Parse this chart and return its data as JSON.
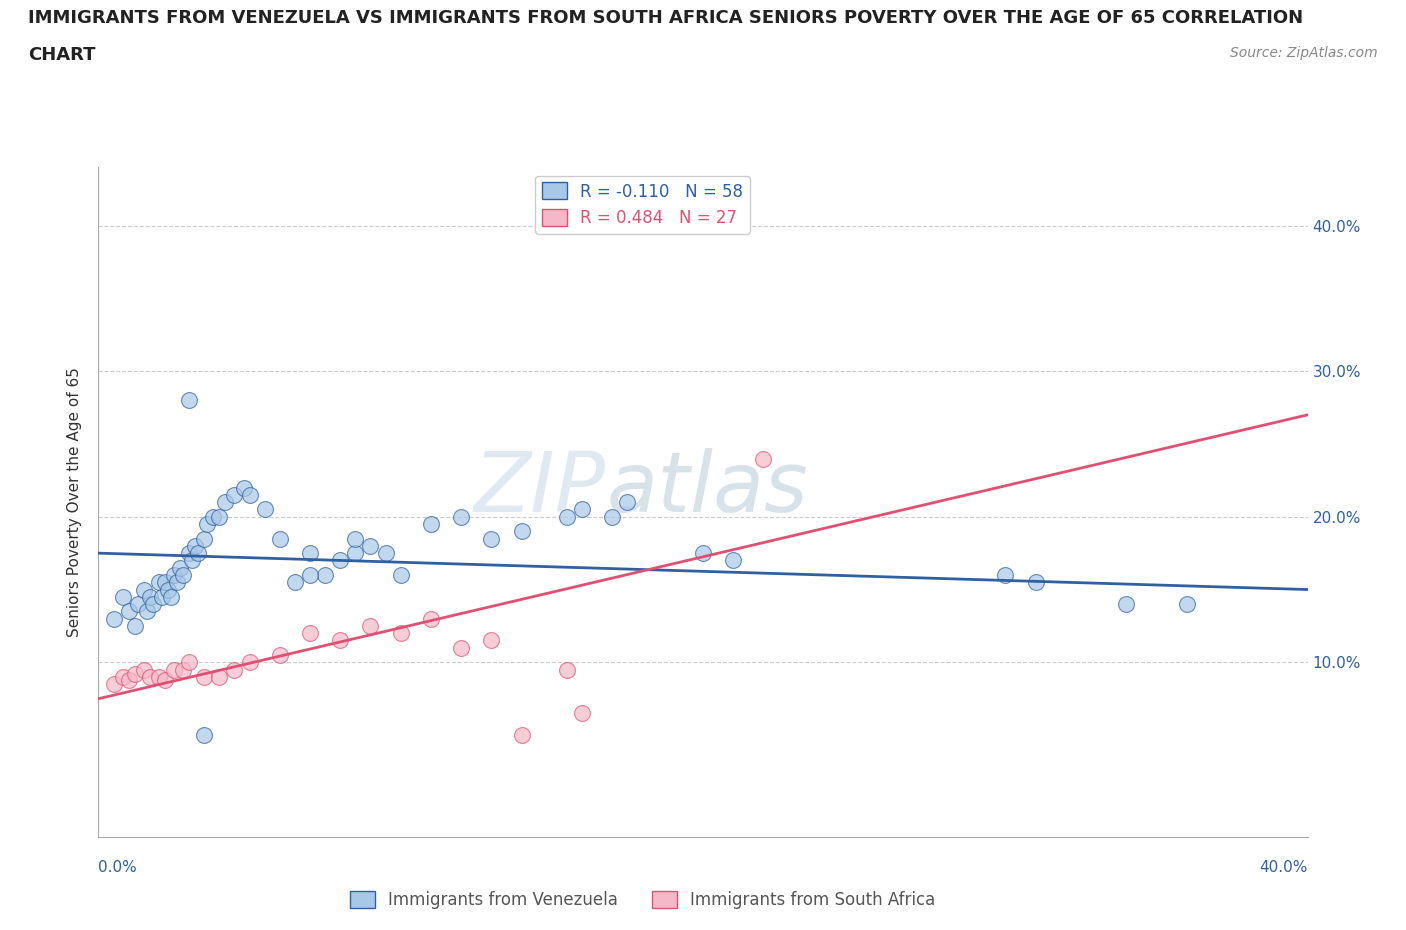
{
  "title_line1": "IMMIGRANTS FROM VENEZUELA VS IMMIGRANTS FROM SOUTH AFRICA SENIORS POVERTY OVER THE AGE OF 65 CORRELATION",
  "title_line2": "CHART",
  "source": "Source: ZipAtlas.com",
  "xlabel_bottom_left": "0.0%",
  "xlabel_bottom_right": "40.0%",
  "ylabel": "Seniors Poverty Over the Age of 65",
  "ytick_labels": [
    "10.0%",
    "20.0%",
    "30.0%",
    "40.0%"
  ],
  "ytick_values": [
    0.1,
    0.2,
    0.3,
    0.4
  ],
  "xlim": [
    0.0,
    0.4
  ],
  "ylim": [
    -0.02,
    0.44
  ],
  "watermark_zip": "ZIP",
  "watermark_atlas": "atlas",
  "legend_r1": "R = -0.110   N = 58",
  "legend_r2": "R = 0.484   N = 27",
  "color_venezuela": "#a8c8e8",
  "color_south_africa": "#f4b8c8",
  "line_color_venezuela": "#3060a0",
  "line_color_south_africa": "#e05070",
  "venezuela_x": [
    0.005,
    0.008,
    0.01,
    0.012,
    0.013,
    0.015,
    0.016,
    0.017,
    0.018,
    0.02,
    0.021,
    0.022,
    0.023,
    0.024,
    0.025,
    0.026,
    0.027,
    0.028,
    0.03,
    0.031,
    0.032,
    0.033,
    0.035,
    0.036,
    0.038,
    0.04,
    0.042,
    0.045,
    0.048,
    0.05,
    0.055,
    0.06,
    0.065,
    0.07,
    0.075,
    0.08,
    0.085,
    0.09,
    0.095,
    0.1,
    0.11,
    0.12,
    0.13,
    0.14,
    0.155,
    0.16,
    0.17,
    0.175,
    0.2,
    0.21,
    0.3,
    0.31,
    0.34,
    0.36,
    0.03,
    0.035,
    0.07,
    0.085
  ],
  "venezuela_y": [
    0.13,
    0.145,
    0.135,
    0.125,
    0.14,
    0.15,
    0.135,
    0.145,
    0.14,
    0.155,
    0.145,
    0.155,
    0.15,
    0.145,
    0.16,
    0.155,
    0.165,
    0.16,
    0.175,
    0.17,
    0.18,
    0.175,
    0.185,
    0.195,
    0.2,
    0.2,
    0.21,
    0.215,
    0.22,
    0.215,
    0.205,
    0.185,
    0.155,
    0.175,
    0.16,
    0.17,
    0.175,
    0.18,
    0.175,
    0.16,
    0.195,
    0.2,
    0.185,
    0.19,
    0.2,
    0.205,
    0.2,
    0.21,
    0.175,
    0.17,
    0.16,
    0.155,
    0.14,
    0.14,
    0.28,
    0.05,
    0.16,
    0.185
  ],
  "south_africa_x": [
    0.005,
    0.008,
    0.01,
    0.012,
    0.015,
    0.017,
    0.02,
    0.022,
    0.025,
    0.028,
    0.03,
    0.035,
    0.04,
    0.045,
    0.05,
    0.06,
    0.07,
    0.08,
    0.09,
    0.1,
    0.11,
    0.12,
    0.13,
    0.14,
    0.155,
    0.16,
    0.22
  ],
  "south_africa_y": [
    0.085,
    0.09,
    0.088,
    0.092,
    0.095,
    0.09,
    0.09,
    0.088,
    0.095,
    0.095,
    0.1,
    0.09,
    0.09,
    0.095,
    0.1,
    0.105,
    0.12,
    0.115,
    0.125,
    0.12,
    0.13,
    0.11,
    0.115,
    0.05,
    0.095,
    0.065,
    0.24
  ],
  "background_color": "#ffffff",
  "grid_color": "#cccccc",
  "title_fontsize": 13,
  "axis_label_fontsize": 11,
  "tick_fontsize": 11,
  "legend_fontsize": 12,
  "source_fontsize": 10,
  "ven_line_x0": 0.0,
  "ven_line_x1": 0.4,
  "ven_line_y0": 0.175,
  "ven_line_y1": 0.15,
  "sa_line_x0": 0.0,
  "sa_line_x1": 0.4,
  "sa_line_y0": 0.075,
  "sa_line_y1": 0.27
}
